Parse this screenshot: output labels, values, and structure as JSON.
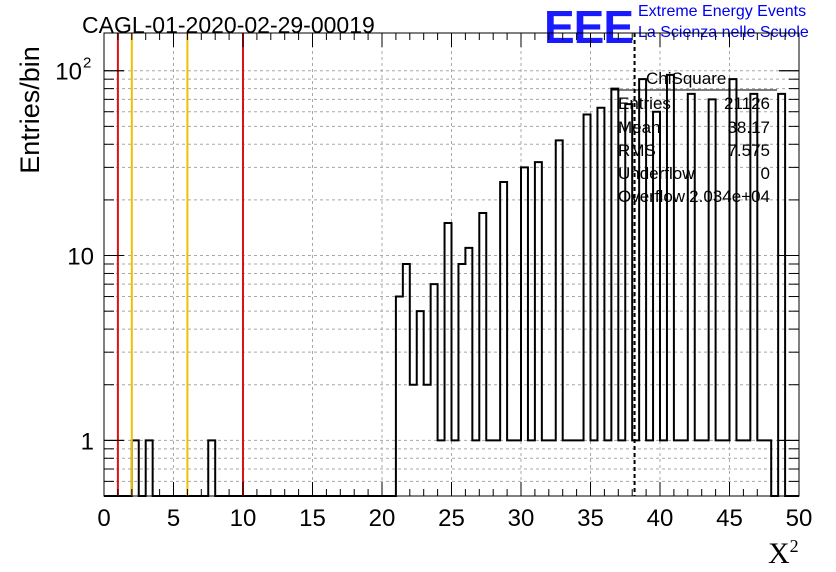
{
  "chart_data": {
    "type": "bar",
    "title": "CAGL-01-2020-02-29-00019",
    "xlabel": "X",
    "xlabel_sup": "2",
    "ylabel": "Entries/bin",
    "xlim": [
      0,
      50
    ],
    "ylim": [
      0.5,
      160
    ],
    "yscale": "log",
    "grid": true,
    "bin_width": 0.5,
    "x_ticks": [
      "0",
      "5",
      "10",
      "15",
      "20",
      "25",
      "30",
      "35",
      "40",
      "45",
      "50"
    ],
    "y_ticks": [
      "1",
      "10",
      "10"
    ],
    "y_tick_sup": "2",
    "bins": [
      {
        "x": 2.0,
        "y": 1
      },
      {
        "x": 3.0,
        "y": 1
      },
      {
        "x": 7.5,
        "y": 1
      },
      {
        "x": 21.0,
        "y": 6
      },
      {
        "x": 21.5,
        "y": 9
      },
      {
        "x": 22.0,
        "y": 2
      },
      {
        "x": 22.5,
        "y": 5
      },
      {
        "x": 23.0,
        "y": 2
      },
      {
        "x": 23.5,
        "y": 7
      },
      {
        "x": 24.0,
        "y": 1
      },
      {
        "x": 24.5,
        "y": 15
      },
      {
        "x": 25.0,
        "y": 1
      },
      {
        "x": 25.5,
        "y": 9
      },
      {
        "x": 26.0,
        "y": 11
      },
      {
        "x": 26.5,
        "y": 1
      },
      {
        "x": 27.0,
        "y": 17
      },
      {
        "x": 27.5,
        "y": 1
      },
      {
        "x": 28.0,
        "y": 1
      },
      {
        "x": 28.5,
        "y": 25
      },
      {
        "x": 29.0,
        "y": 1
      },
      {
        "x": 29.5,
        "y": 1
      },
      {
        "x": 30.0,
        "y": 30
      },
      {
        "x": 30.5,
        "y": 1
      },
      {
        "x": 31.0,
        "y": 32
      },
      {
        "x": 31.5,
        "y": 1
      },
      {
        "x": 32.0,
        "y": 1
      },
      {
        "x": 32.5,
        "y": 42
      },
      {
        "x": 33.0,
        "y": 1
      },
      {
        "x": 33.5,
        "y": 1
      },
      {
        "x": 34.0,
        "y": 1
      },
      {
        "x": 34.5,
        "y": 58
      },
      {
        "x": 35.0,
        "y": 1
      },
      {
        "x": 35.5,
        "y": 63
      },
      {
        "x": 36.0,
        "y": 1
      },
      {
        "x": 36.5,
        "y": 80
      },
      {
        "x": 37.0,
        "y": 1
      },
      {
        "x": 37.5,
        "y": 66
      },
      {
        "x": 38.0,
        "y": 1
      },
      {
        "x": 38.5,
        "y": 90
      },
      {
        "x": 39.0,
        "y": 1
      },
      {
        "x": 39.5,
        "y": 60
      },
      {
        "x": 40.0,
        "y": 1
      },
      {
        "x": 40.5,
        "y": 95
      },
      {
        "x": 41.0,
        "y": 1
      },
      {
        "x": 41.5,
        "y": 1
      },
      {
        "x": 42.0,
        "y": 75
      },
      {
        "x": 42.5,
        "y": 1
      },
      {
        "x": 43.0,
        "y": 1
      },
      {
        "x": 43.5,
        "y": 70
      },
      {
        "x": 44.0,
        "y": 1
      },
      {
        "x": 44.5,
        "y": 1
      },
      {
        "x": 45.0,
        "y": 90
      },
      {
        "x": 45.5,
        "y": 1
      },
      {
        "x": 46.0,
        "y": 1
      },
      {
        "x": 46.5,
        "y": 75
      },
      {
        "x": 47.0,
        "y": 1
      },
      {
        "x": 47.5,
        "y": 1
      },
      {
        "x": 48.5,
        "y": 75
      }
    ],
    "vertical_lines": [
      {
        "x": 1,
        "color": "#dd1111"
      },
      {
        "x": 2,
        "color": "#f0c000"
      },
      {
        "x": 6,
        "color": "#f0c000"
      },
      {
        "x": 10,
        "color": "#dd1111"
      }
    ],
    "mean_line": {
      "x": 38.17,
      "style": "dashed",
      "color": "#000000"
    },
    "stats_box": {
      "title": "ChiSquare",
      "rows": [
        {
          "name": "Entries",
          "value": "21126"
        },
        {
          "name": "Mean",
          "value": "38.17"
        },
        {
          "name": "RMS",
          "value": "7.575"
        },
        {
          "name": "Underflow",
          "value": "0"
        },
        {
          "name": "Overflow",
          "value": "2.034e+04"
        }
      ]
    }
  },
  "logo": {
    "mark": "EEE",
    "line1": "Extreme Energy Events",
    "line2": "La Scienza nelle Scuole",
    "color": "#1a1aff"
  }
}
